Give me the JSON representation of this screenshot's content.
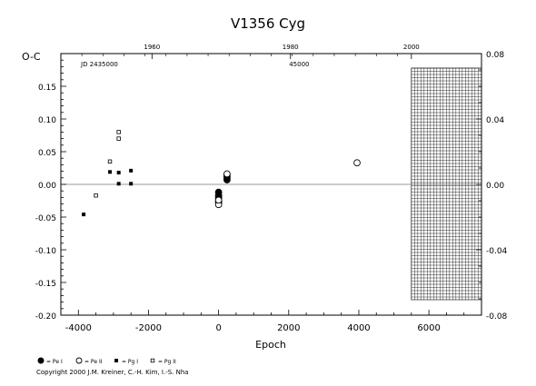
{
  "chart_data": {
    "type": "scatter",
    "title": "V1356 Cyg",
    "xlabel": "Epoch",
    "ylabel": "O-C",
    "xlim": [
      -4500,
      7500
    ],
    "ylim": [
      -0.2,
      0.2
    ],
    "x_ticks": [
      "-4000",
      "-2000",
      "0",
      "2000",
      "4000",
      "6000"
    ],
    "x_tick_values": [
      -4000,
      -2000,
      0,
      2000,
      4000,
      6000
    ],
    "y_ticks": [
      "-0.20",
      "-0.15",
      "-0.10",
      "-0.05",
      "0.00",
      "0.05",
      "0.10",
      "0.15"
    ],
    "y_tick_values": [
      -0.2,
      -0.15,
      -0.1,
      -0.05,
      0.0,
      0.05,
      0.1,
      0.15
    ],
    "y2_ticks": [
      "-0.08",
      "-0.04",
      "0.00",
      "0.04",
      "0.08"
    ],
    "y2_tick_values": [
      -0.08,
      -0.04,
      0.0,
      0.04,
      0.08
    ],
    "top_year_ticks": [
      "1960",
      "1980",
      "2000"
    ],
    "top_year_epochs": [
      -1900,
      2050,
      5500
    ],
    "top_jd_labels": [
      "JD 2435000",
      "45000"
    ],
    "top_jd_epochs": [
      -3400,
      2300
    ],
    "hatched_region_x": [
      5500,
      7500
    ],
    "legend": [
      "= Pe I",
      "= Pe II",
      "= Pg I",
      "= Pg II"
    ],
    "series": [
      {
        "name": "Pe I",
        "marker": "filled-circle",
        "x": [
          0,
          0,
          0,
          0,
          0,
          0,
          240,
          240,
          240
        ],
        "y": [
          -0.012,
          -0.017,
          -0.019,
          -0.022,
          -0.026,
          -0.028,
          0.007,
          0.01,
          0.013
        ]
      },
      {
        "name": "Pe II",
        "marker": "open-circle",
        "x": [
          0,
          0,
          240,
          3950
        ],
        "y": [
          -0.031,
          -0.024,
          0.016,
          0.033
        ]
      },
      {
        "name": "Pg I",
        "marker": "filled-square",
        "x": [
          -3850,
          -3100,
          -2850,
          -2850,
          -2500,
          -2500
        ],
        "y": [
          -0.046,
          0.019,
          0.018,
          0.001,
          0.021,
          0.001
        ]
      },
      {
        "name": "Pg II",
        "marker": "open-square",
        "x": [
          -3500,
          -3100,
          -2850,
          -2850
        ],
        "y": [
          -0.017,
          0.035,
          0.07,
          0.08
        ]
      }
    ]
  },
  "copyright": "Copyright 2000 J.M. Kreiner, C.-H. Kim, I.-S. Nha"
}
